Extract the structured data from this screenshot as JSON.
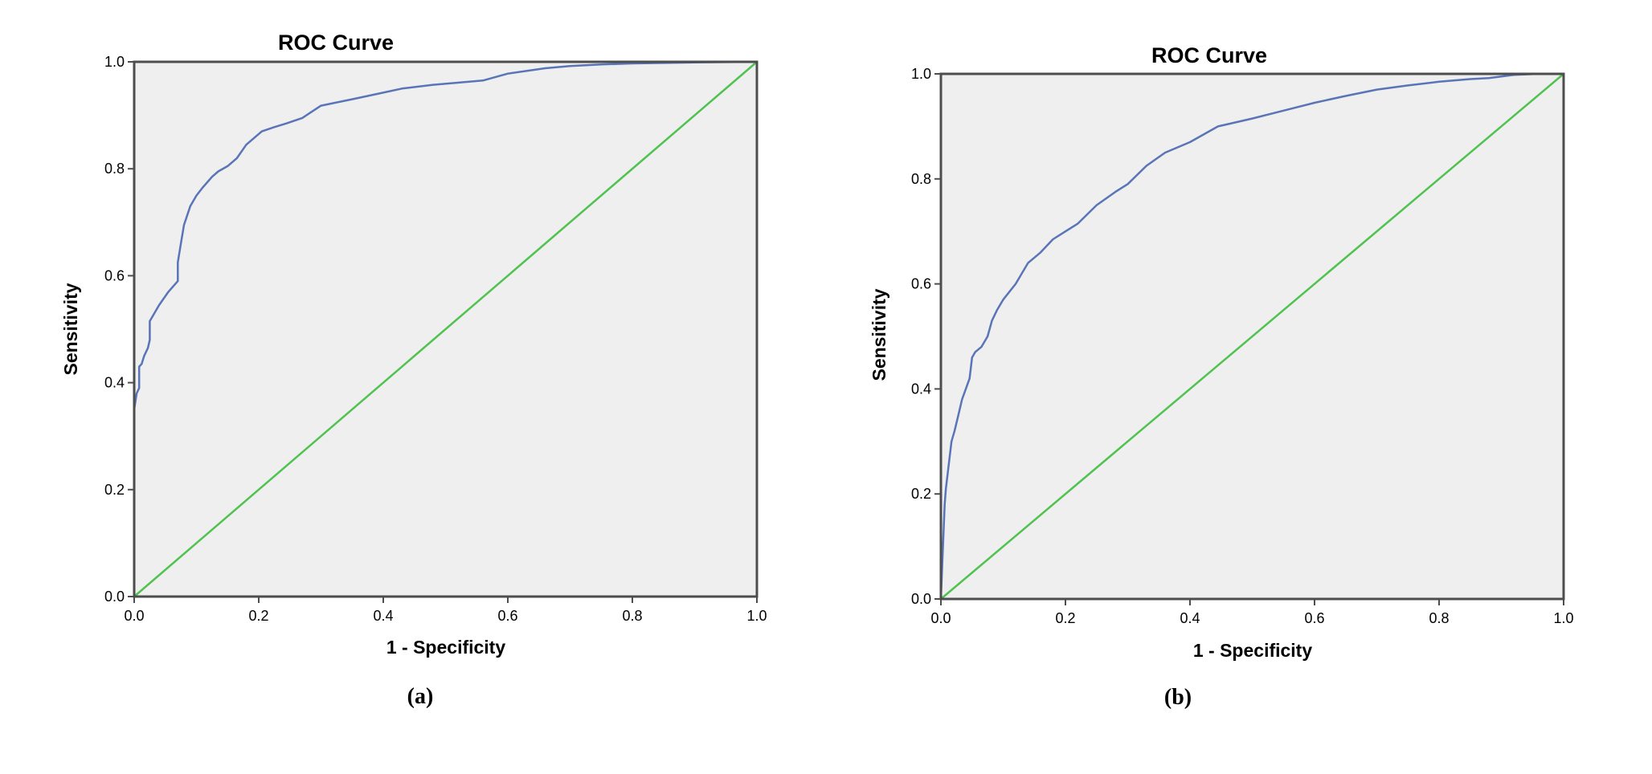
{
  "colors": {
    "plot_background": "#efefef",
    "frame": "#4d4d4d",
    "roc_curve": "#5a74b8",
    "reference_line": "#4fc24f"
  },
  "chart_data": [
    {
      "type": "line",
      "title": "ROC Curve",
      "xlabel": "1 - Specificity",
      "ylabel": "Sensitivity",
      "caption": "(a)",
      "xlim": [
        0,
        1
      ],
      "ylim": [
        0,
        1
      ],
      "xticks": [
        "0.0",
        "0.2",
        "0.4",
        "0.6",
        "0.8",
        "1.0"
      ],
      "yticks": [
        "0.0",
        "0.2",
        "0.4",
        "0.6",
        "0.8",
        "1.0"
      ],
      "grid": false,
      "series": [
        {
          "role": "curve",
          "color": "#5a74b8",
          "x": [
            0.0,
            0.0,
            0.004,
            0.004,
            0.008,
            0.008,
            0.012,
            0.016,
            0.022,
            0.025,
            0.025,
            0.04,
            0.055,
            0.07,
            0.07,
            0.075,
            0.08,
            0.09,
            0.1,
            0.11,
            0.125,
            0.135,
            0.15,
            0.165,
            0.18,
            0.205,
            0.225,
            0.245,
            0.27,
            0.3,
            0.35,
            0.39,
            0.43,
            0.48,
            0.51,
            0.56,
            0.6,
            0.66,
            0.7,
            0.75,
            0.8,
            0.9,
            1.0
          ],
          "y": [
            0.0,
            0.35,
            0.38,
            0.38,
            0.39,
            0.43,
            0.435,
            0.45,
            0.465,
            0.48,
            0.515,
            0.545,
            0.57,
            0.59,
            0.625,
            0.66,
            0.695,
            0.73,
            0.75,
            0.765,
            0.785,
            0.795,
            0.805,
            0.82,
            0.845,
            0.87,
            0.878,
            0.885,
            0.895,
            0.918,
            0.93,
            0.94,
            0.95,
            0.957,
            0.96,
            0.965,
            0.978,
            0.988,
            0.992,
            0.995,
            0.997,
            0.999,
            1.0
          ]
        },
        {
          "role": "reference",
          "color": "#4fc24f",
          "x": [
            0,
            1
          ],
          "y": [
            0,
            1
          ]
        }
      ]
    },
    {
      "type": "line",
      "title": "ROC Curve",
      "xlabel": "1 - Specificity",
      "ylabel": "Sensitivity",
      "caption": "(b)",
      "xlim": [
        0,
        1
      ],
      "ylim": [
        0,
        1
      ],
      "xticks": [
        "0.0",
        "0.2",
        "0.4",
        "0.6",
        "0.8",
        "1.0"
      ],
      "yticks": [
        "0.0",
        "0.2",
        "0.4",
        "0.6",
        "0.8",
        "1.0"
      ],
      "grid": false,
      "series": [
        {
          "role": "curve",
          "color": "#5a74b8",
          "x": [
            0.0,
            0.002,
            0.004,
            0.006,
            0.008,
            0.012,
            0.017,
            0.022,
            0.028,
            0.034,
            0.04,
            0.046,
            0.05,
            0.055,
            0.065,
            0.075,
            0.082,
            0.09,
            0.1,
            0.12,
            0.14,
            0.16,
            0.18,
            0.2,
            0.22,
            0.25,
            0.28,
            0.3,
            0.33,
            0.36,
            0.4,
            0.445,
            0.5,
            0.55,
            0.6,
            0.65,
            0.7,
            0.75,
            0.8,
            0.85,
            0.88,
            0.92,
            0.96,
            1.0
          ],
          "y": [
            0.0,
            0.06,
            0.12,
            0.18,
            0.21,
            0.25,
            0.3,
            0.32,
            0.35,
            0.38,
            0.4,
            0.42,
            0.46,
            0.47,
            0.48,
            0.5,
            0.53,
            0.55,
            0.57,
            0.6,
            0.64,
            0.66,
            0.685,
            0.7,
            0.715,
            0.75,
            0.775,
            0.79,
            0.825,
            0.85,
            0.87,
            0.9,
            0.915,
            0.93,
            0.945,
            0.958,
            0.97,
            0.978,
            0.985,
            0.99,
            0.992,
            0.998,
            1.0,
            1.0
          ]
        },
        {
          "role": "reference",
          "color": "#4fc24f",
          "x": [
            0,
            1
          ],
          "y": [
            0,
            1
          ]
        }
      ]
    }
  ]
}
